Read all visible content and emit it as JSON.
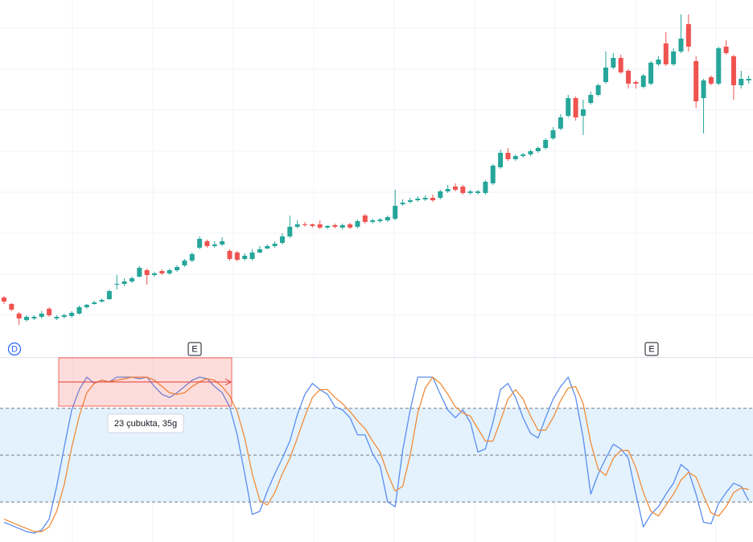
{
  "chart_data": [
    {
      "type": "candlestick",
      "ylim": [
        0,
        440
      ],
      "grid": true,
      "up_color": "#26a69a",
      "down_color": "#ef5350",
      "open": [
        70,
        62,
        50,
        42,
        44,
        46,
        56,
        44,
        46,
        47,
        50,
        58,
        62,
        65,
        68,
        86,
        87,
        90,
        96,
        104,
        98,
        103,
        100,
        104,
        110,
        116,
        132,
        140,
        134,
        136,
        128,
        126,
        118,
        118,
        126,
        131,
        134,
        138,
        146,
        158,
        161,
        161,
        161,
        157,
        160,
        157,
        161,
        158,
        172,
        164,
        165,
        166,
        168,
        186,
        189,
        191,
        192,
        194,
        194,
        202,
        208,
        208,
        200,
        200,
        200,
        212,
        232,
        250,
        242,
        246,
        248,
        252,
        256,
        268,
        280,
        296,
        318,
        296,
        312,
        322,
        338,
        356,
        368,
        352,
        338,
        332,
        336,
        360,
        386,
        360,
        376,
        410,
        364,
        318,
        344,
        336,
        382,
        370,
        334,
        340
      ],
      "high": [
        72,
        63,
        52,
        48,
        48,
        53,
        58,
        48,
        50,
        53,
        60,
        62,
        66,
        69,
        80,
        98,
        94,
        96,
        109,
        106,
        102,
        105,
        106,
        110,
        118,
        126,
        146,
        142,
        140,
        145,
        130,
        128,
        125,
        130,
        134,
        136,
        140,
        150,
        172,
        166,
        164,
        162,
        166,
        160,
        162,
        162,
        163,
        167,
        174,
        168,
        169,
        172,
        204,
        192,
        194,
        196,
        197,
        198,
        204,
        210,
        212,
        210,
        204,
        204,
        216,
        236,
        254,
        256,
        248,
        250,
        254,
        258,
        268,
        282,
        298,
        322,
        320,
        316,
        326,
        336,
        376,
        374,
        372,
        354,
        340,
        348,
        364,
        370,
        400,
        380,
        422,
        422,
        370,
        342,
        346,
        382,
        390,
        372,
        352,
        346
      ],
      "low": [
        62,
        53,
        36,
        40,
        42,
        44,
        46,
        42,
        44,
        45,
        49,
        56,
        61,
        64,
        67,
        80,
        84,
        88,
        95,
        86,
        96,
        98,
        98,
        102,
        108,
        114,
        130,
        132,
        132,
        134,
        116,
        115,
        116,
        116,
        125,
        130,
        132,
        136,
        144,
        156,
        158,
        157,
        155,
        155,
        156,
        155,
        155,
        156,
        162,
        162,
        163,
        164,
        166,
        184,
        187,
        189,
        190,
        189,
        192,
        200,
        202,
        198,
        198,
        198,
        198,
        210,
        230,
        240,
        240,
        244,
        246,
        250,
        254,
        266,
        278,
        294,
        290,
        272,
        310,
        320,
        336,
        354,
        348,
        330,
        330,
        330,
        334,
        358,
        358,
        358,
        374,
        376,
        306,
        274,
        334,
        334,
        372,
        316,
        330,
        336
      ],
      "close": [
        65,
        55,
        44,
        46,
        46,
        50,
        48,
        46,
        48,
        51,
        58,
        61,
        64,
        67,
        78,
        87,
        90,
        94,
        107,
        98,
        100,
        100,
        104,
        108,
        116,
        124,
        143,
        134,
        136,
        140,
        118,
        117,
        122,
        126,
        130,
        134,
        137,
        146,
        158,
        161,
        160,
        159,
        157,
        159,
        158,
        160,
        157,
        165,
        164,
        166,
        167,
        170,
        184,
        188,
        191,
        193,
        194,
        191,
        202,
        205,
        204,
        200,
        202,
        202,
        214,
        234,
        250,
        242,
        246,
        248,
        252,
        256,
        266,
        278,
        294,
        318,
        294,
        304,
        322,
        334,
        356,
        368,
        350,
        336,
        336,
        346,
        362,
        366,
        360,
        376,
        392,
        382,
        314,
        340,
        336,
        380,
        374,
        334,
        342,
        342
      ]
    },
    {
      "type": "line",
      "ylim": [
        0,
        100
      ],
      "bands": [
        80,
        50,
        20
      ],
      "band_fill": "#e3f2fd",
      "series": [
        {
          "color": "#5b8def",
          "values": [
            7,
            5,
            3,
            1,
            0,
            2,
            9,
            30,
            55,
            79,
            92,
            100,
            96,
            98,
            97,
            100,
            100,
            100,
            99,
            100,
            94,
            89,
            87,
            90,
            94,
            98,
            100,
            99,
            94,
            90,
            81,
            63,
            38,
            12,
            14,
            27,
            38,
            48,
            59,
            76,
            89,
            96,
            92,
            89,
            81,
            79,
            74,
            63,
            63,
            51,
            43,
            20,
            17,
            53,
            79,
            100,
            100,
            100,
            89,
            79,
            74,
            79,
            71,
            52,
            54,
            71,
            92,
            96,
            87,
            74,
            64,
            61,
            74,
            86,
            94,
            100,
            87,
            61,
            25,
            38,
            48,
            57,
            54,
            48,
            25,
            4,
            12,
            17,
            25,
            32,
            44,
            40,
            25,
            7,
            6,
            19,
            26,
            32,
            30,
            21
          ]
        },
        {
          "color": "#f08c3a",
          "values": [
            9,
            7,
            5,
            3,
            1,
            1,
            4,
            14,
            31,
            55,
            75,
            90,
            96,
            98,
            97,
            98,
            99,
            100,
            100,
            100,
            98,
            94,
            90,
            89,
            90,
            94,
            97,
            99,
            98,
            94,
            88,
            78,
            61,
            38,
            21,
            18,
            26,
            38,
            48,
            61,
            75,
            87,
            92,
            92,
            87,
            83,
            78,
            72,
            67,
            59,
            52,
            38,
            27,
            30,
            50,
            77,
            93,
            100,
            96,
            89,
            81,
            77,
            75,
            67,
            59,
            59,
            72,
            86,
            92,
            86,
            75,
            66,
            66,
            74,
            85,
            93,
            94,
            83,
            58,
            41,
            37,
            48,
            53,
            53,
            42,
            26,
            14,
            11,
            18,
            25,
            34,
            39,
            36,
            24,
            13,
            11,
            17,
            26,
            29,
            28
          ]
        }
      ]
    }
  ],
  "markers": [
    "D",
    "E",
    "E"
  ],
  "measure_label": "23 çubukta, 35g"
}
